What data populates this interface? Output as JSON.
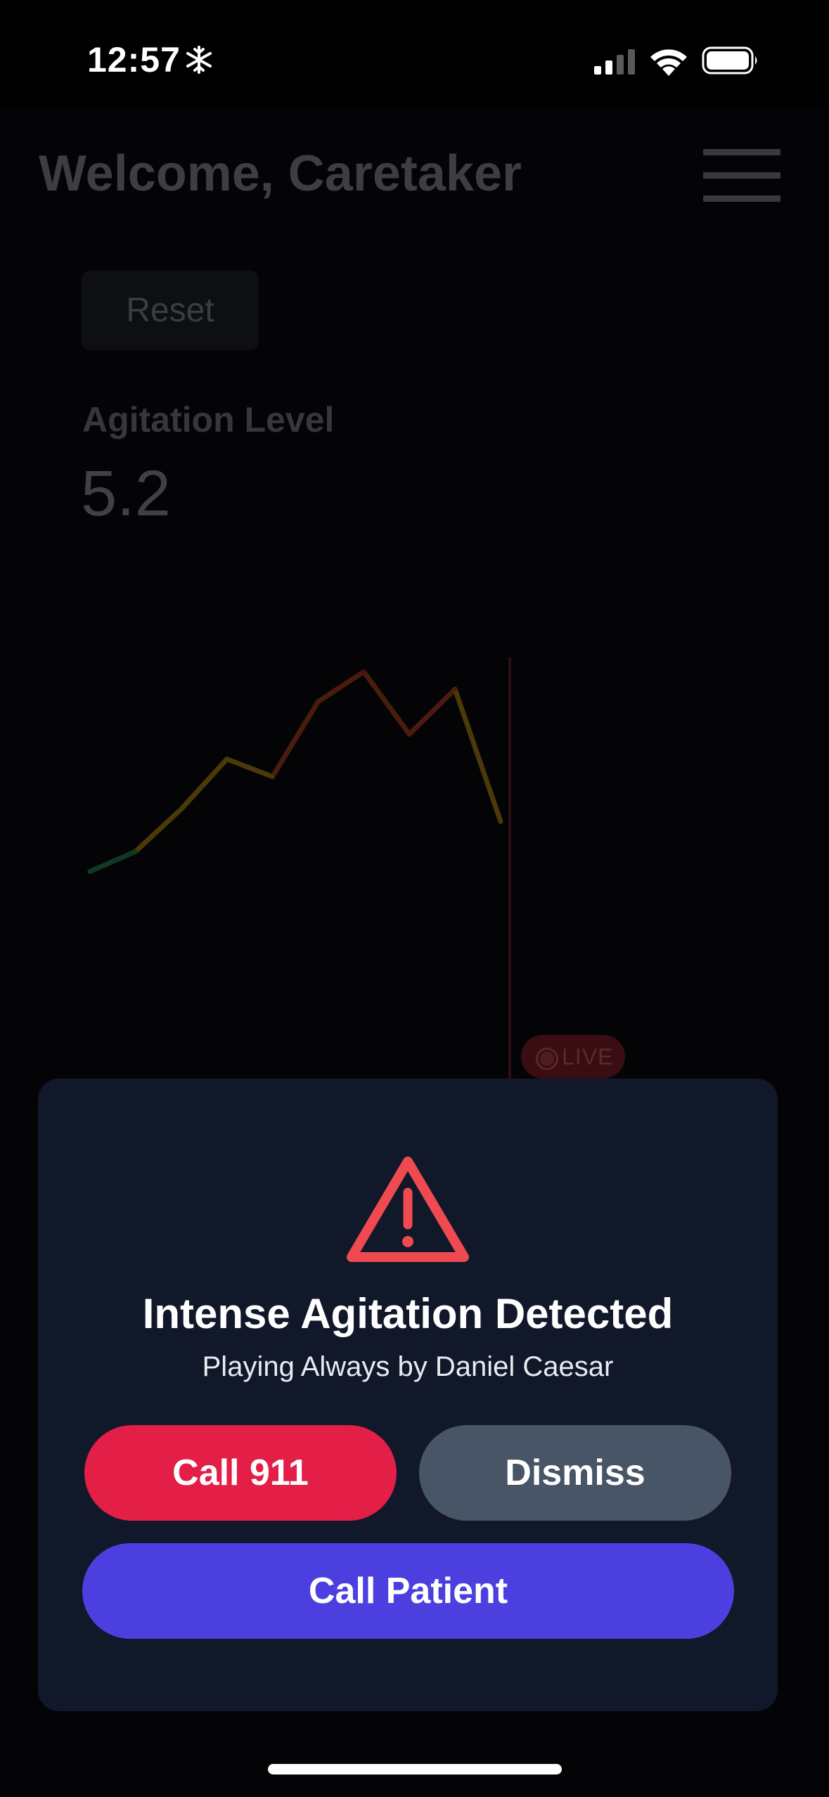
{
  "status_bar": {
    "time": "12:57",
    "icons": [
      "snowflake-icon",
      "cellular-signal-icon",
      "wifi-icon",
      "battery-icon"
    ]
  },
  "header": {
    "title": "Welcome, Caretaker",
    "menu_icon": "hamburger-menu-icon"
  },
  "controls": {
    "reset_label": "Reset"
  },
  "metric": {
    "label": "Agitation Level",
    "value": "5.2"
  },
  "live_badge": {
    "label": "LIVE"
  },
  "chart_data": {
    "type": "line",
    "title": "",
    "xlabel": "",
    "ylabel": "",
    "grid": false,
    "x": [
      0,
      1,
      2,
      3,
      4,
      5,
      6,
      7,
      8,
      9
    ],
    "values": [
      1.0,
      1.8,
      3.5,
      5.5,
      4.8,
      7.8,
      9.0,
      6.5,
      8.3,
      3.0
    ],
    "ylim": [
      0,
      10
    ],
    "colors": {
      "low": "#0f3a22",
      "mid": "#4a3a08",
      "high": "#4a1c0c",
      "peak": "#3c1116",
      "cursor": "#3a0f15"
    }
  },
  "alert": {
    "icon": "warning-triangle-icon",
    "icon_color": "#ee4a4f",
    "title": "Intense Agitation Detected",
    "subtitle": "Playing Always by Daniel Caesar",
    "call_911_label": "Call 911",
    "dismiss_label": "Dismiss",
    "call_patient_label": "Call Patient",
    "colors": {
      "call_911": "#e31e47",
      "dismiss": "#485566",
      "call_patient": "#4b40df",
      "panel": "#10182a"
    }
  }
}
